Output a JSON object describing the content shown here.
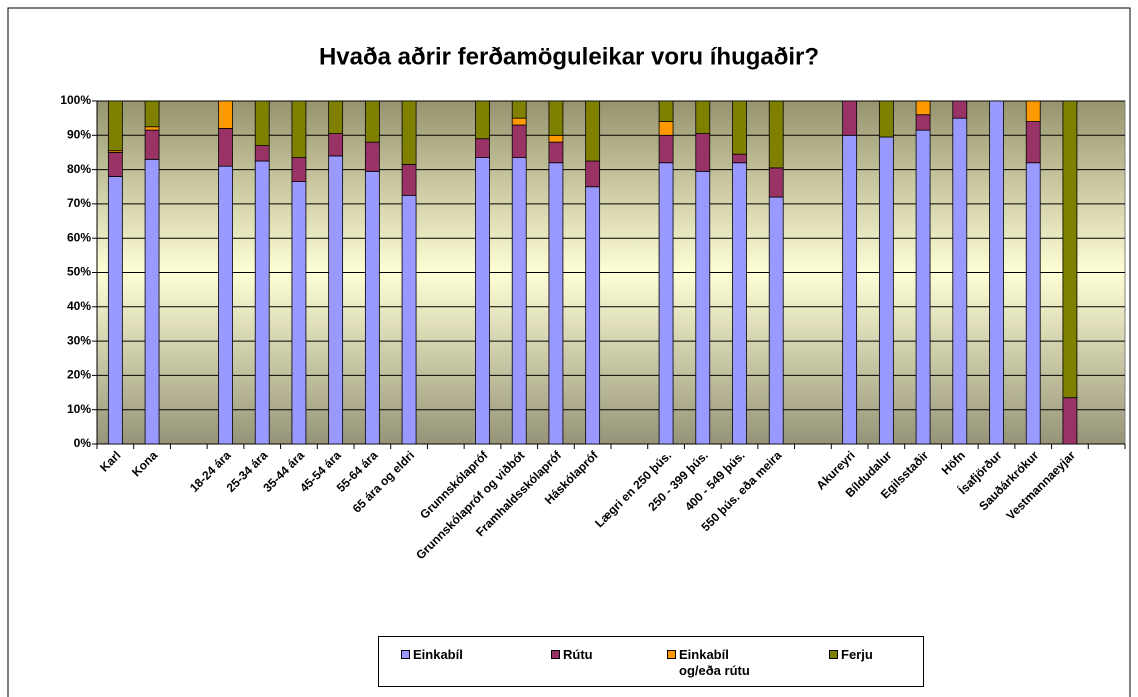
{
  "chart_data": {
    "type": "stacked_bar",
    "title": "Hvaða aðrir ferðamöguleikar voru íhugaðir?",
    "categories": [
      "Karl",
      "Kona",
      null,
      "18-24 ára",
      "25-34 ára",
      "35-44 ára",
      "45-54 ára",
      "55-64 ára",
      "65 ára og eldri",
      null,
      "Grunnskólapróf",
      "Grunnskólapróf og viðbót",
      "Framhaldsskólapróf",
      "Háskólapróf",
      null,
      "Lægri en 250 þús.",
      "250 - 399 þús.",
      "400 - 549 þús.",
      "550 þús. eða meira",
      null,
      "Akureyri",
      "Bíldudalur",
      "Egilsstaðir",
      "Höfn",
      "Ísafjörður",
      "Sauðárkrókur",
      "Vestmannaeyjar",
      null
    ],
    "series": [
      {
        "name": "Einkabíl",
        "color": "#9999ff",
        "values": [
          78,
          83,
          null,
          81,
          82.5,
          76.5,
          84,
          79.5,
          72.5,
          null,
          83.5,
          83.5,
          82,
          75,
          null,
          82,
          79.5,
          82,
          72,
          null,
          90,
          89.5,
          91.5,
          95,
          100,
          82,
          0,
          null
        ]
      },
      {
        "name": "Rútu",
        "color": "#993366",
        "values": [
          7,
          8.5,
          null,
          11,
          4.5,
          7,
          6.5,
          8.5,
          9,
          null,
          5.5,
          9.5,
          6,
          7.5,
          null,
          8,
          11,
          2.5,
          8.5,
          null,
          10,
          0,
          4.5,
          5,
          0,
          12,
          13.5,
          null
        ]
      },
      {
        "name": "Einkabíl og/eða rútu",
        "color": "#ff9900",
        "values": [
          0.5,
          1,
          null,
          8,
          0,
          0,
          0,
          0,
          0,
          null,
          0,
          2,
          2,
          0,
          null,
          4,
          0,
          0,
          0,
          null,
          0,
          0,
          4,
          0,
          0,
          6,
          0,
          null
        ]
      },
      {
        "name": "Ferju",
        "color": "#808000",
        "values": [
          14.5,
          7.5,
          null,
          0,
          13,
          16.5,
          9.5,
          12,
          18.5,
          null,
          11,
          5,
          10,
          17.5,
          null,
          6,
          9.5,
          15.5,
          19.5,
          null,
          0,
          10.5,
          0,
          0,
          0,
          0,
          86.5,
          null
        ]
      }
    ],
    "ylim": [
      0,
      100
    ],
    "yticks": [
      {
        "value": 0,
        "label": "0%"
      },
      {
        "value": 10,
        "label": "10%"
      },
      {
        "value": 20,
        "label": "20%"
      },
      {
        "value": 30,
        "label": "30%"
      },
      {
        "value": 40,
        "label": "40%"
      },
      {
        "value": 50,
        "label": "50%"
      },
      {
        "value": 60,
        "label": "60%"
      },
      {
        "value": 70,
        "label": "70%"
      },
      {
        "value": 80,
        "label": "80%"
      },
      {
        "value": 90,
        "label": "90%"
      },
      {
        "value": 100,
        "label": "100%"
      }
    ],
    "grid": true,
    "legend": "bottom"
  }
}
